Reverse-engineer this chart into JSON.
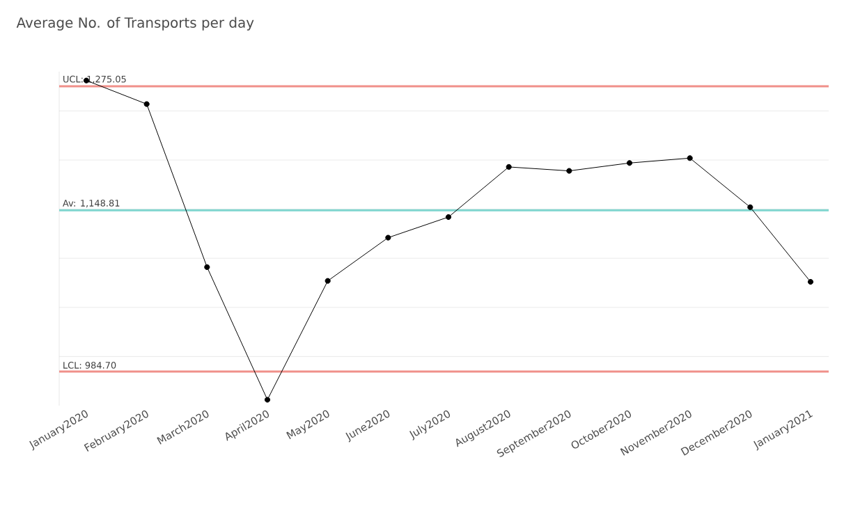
{
  "chart_data": {
    "type": "line",
    "title": "Average No. of Transports per day",
    "categories": [
      "January2020",
      "February2020",
      "March2020",
      "April2020",
      "May2020",
      "June2020",
      "July2020",
      "August2020",
      "September2020",
      "October2020",
      "November2020",
      "December2020",
      "January2021"
    ],
    "series": [
      {
        "color": "#000000",
        "values": [
          1281,
          1257,
          1091,
          956,
          1077,
          1121,
          1142,
          1193,
          1189,
          1197,
          1202,
          1152,
          1076
        ]
      }
    ],
    "ylim": [
      950,
      1290
    ],
    "yticks": [
      {
        "value": 1000,
        "label": null
      },
      {
        "value": 1050,
        "label": null
      },
      {
        "value": 1100,
        "label": null
      },
      {
        "value": 1150,
        "label": null
      },
      {
        "value": 1200,
        "label": null
      },
      {
        "value": 1250,
        "label": null
      }
    ],
    "tick_labels": "x",
    "grid": "y",
    "marker": "circle",
    "line_style": "solid",
    "ref_lines": [
      {
        "axis": "y",
        "value": 1275.05,
        "label": "UCL: 1,275.05",
        "color": "#f0908a"
      },
      {
        "axis": "y",
        "value": 1148.81,
        "label": "Av: 1,148.81",
        "color": "#7fd6cf"
      },
      {
        "axis": "y",
        "value": 984.7,
        "label": "LCL: 984.70",
        "color": "#f0908a"
      }
    ]
  }
}
